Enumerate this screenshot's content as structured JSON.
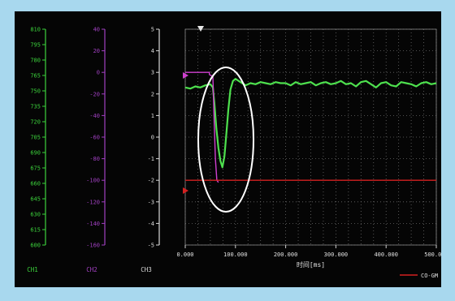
{
  "colors": {
    "background": "#050505",
    "frame": "#a8d8ee",
    "ch1": "#3cd23c",
    "ch2": "#a040c0",
    "ch3": "#d8d8d8",
    "signal": "#4ee04e",
    "reference": "#d42020",
    "marker": "#d040d0",
    "ellipse": "#ffffff",
    "grid": "#6a6a6a"
  },
  "chart_data": {
    "type": "line",
    "x_axis": {
      "label": "时间[ms]",
      "range": [
        0,
        500
      ],
      "ticks": [
        0,
        100,
        200,
        300,
        400,
        500
      ],
      "tick_labels": [
        "0.000",
        "100.000",
        "200.000",
        "300.000",
        "400.000",
        "500.000"
      ]
    },
    "axes": [
      {
        "id": "ch1",
        "channel_label": "CH1",
        "label": "",
        "range": [
          600,
          810
        ],
        "ticks": [
          600,
          615,
          630,
          645,
          660,
          675,
          690,
          705,
          720,
          735,
          750,
          765,
          780,
          795,
          810
        ],
        "color_key": "ch1"
      },
      {
        "id": "ch2",
        "channel_label": "CH2",
        "label": "",
        "range": [
          -160,
          40
        ],
        "ticks": [
          -160,
          -140,
          -120,
          -100,
          -80,
          -60,
          -40,
          -20,
          0,
          20,
          40
        ],
        "color_key": "ch2"
      },
      {
        "id": "ch3",
        "channel_label": "CH3",
        "label": "",
        "range": [
          -5,
          5
        ],
        "ticks": [
          -5,
          -4,
          -3,
          -2,
          -1,
          0,
          1,
          2,
          3,
          4,
          5
        ],
        "color_key": "ch3"
      }
    ],
    "series": [
      {
        "axis": "ch3",
        "color_key": "signal",
        "x": [
          0,
          10,
          20,
          30,
          40,
          50,
          55,
          58,
          62,
          66,
          70,
          74,
          78,
          82,
          86,
          90,
          95,
          100,
          110,
          120,
          130,
          140,
          150,
          160,
          170,
          180,
          190,
          200,
          210,
          220,
          230,
          240,
          250,
          260,
          270,
          280,
          290,
          300,
          310,
          320,
          330,
          340,
          350,
          360,
          370,
          380,
          390,
          400,
          410,
          420,
          430,
          440,
          450,
          460,
          470,
          480,
          490,
          500
        ],
        "y": [
          2.3,
          2.25,
          2.35,
          2.3,
          2.4,
          2.45,
          2.3,
          1.6,
          0.4,
          -0.5,
          -1.1,
          -1.4,
          -0.9,
          0.2,
          1.3,
          2.2,
          2.6,
          2.7,
          2.55,
          2.4,
          2.5,
          2.45,
          2.55,
          2.5,
          2.45,
          2.55,
          2.5,
          2.5,
          2.4,
          2.55,
          2.45,
          2.5,
          2.55,
          2.4,
          2.5,
          2.55,
          2.45,
          2.5,
          2.6,
          2.45,
          2.5,
          2.35,
          2.55,
          2.6,
          2.45,
          2.3,
          2.5,
          2.55,
          2.4,
          2.35,
          2.55,
          2.5,
          2.45,
          2.35,
          2.5,
          2.55,
          2.45,
          2.5
        ]
      },
      {
        "axis": "ch3",
        "color_key": "marker",
        "x": [
          0,
          48,
          48,
          55,
          58,
          60,
          63,
          66
        ],
        "y": [
          3,
          3,
          2.9,
          2.8,
          0.5,
          -1,
          -2,
          -2.1
        ]
      },
      {
        "axis": "ch3",
        "color_key": "reference",
        "x": [
          0,
          500
        ],
        "y": [
          -2,
          -2
        ]
      }
    ],
    "legend": {
      "position": "bottom-right",
      "entries": [
        "CO-GM"
      ]
    },
    "grid": true
  }
}
